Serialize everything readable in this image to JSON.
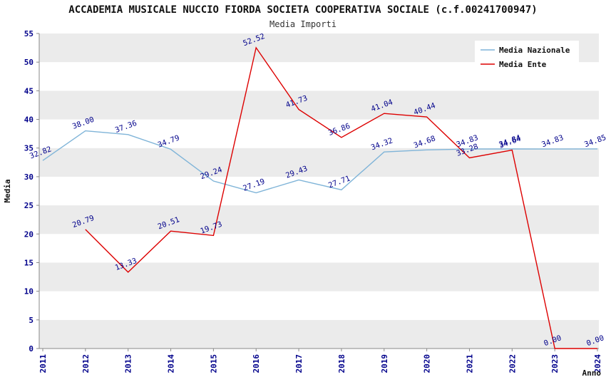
{
  "chart_data": {
    "type": "line",
    "title": "ACCADEMIA MUSICALE NUCCIO FIORDA SOCIETA COOPERATIVA SOCIALE (c.f.00241700947)",
    "subtitle": "Media Importi",
    "xlabel": "Anno",
    "ylabel": "Media",
    "ylim": [
      0,
      55
    ],
    "ytick_step": 5,
    "x": [
      2011,
      2012,
      2013,
      2014,
      2015,
      2016,
      2017,
      2018,
      2019,
      2020,
      2021,
      2022,
      2023,
      2024
    ],
    "series": [
      {
        "name": "Media Nazionale",
        "color": "#7FB4D8",
        "values": [
          32.82,
          38.0,
          37.36,
          34.79,
          29.24,
          27.19,
          29.43,
          27.71,
          34.32,
          34.68,
          34.83,
          34.84,
          34.83,
          34.85
        ]
      },
      {
        "name": "Media Ente",
        "color": "#DD0000",
        "values": [
          null,
          20.79,
          13.33,
          20.51,
          19.73,
          52.52,
          41.73,
          36.86,
          41.04,
          40.44,
          33.28,
          34.64,
          0.0,
          0.0
        ]
      }
    ],
    "legend": {
      "position": "top-right",
      "entries": [
        "Media Nazionale",
        "Media Ente"
      ]
    },
    "grid": "horizontal-bands",
    "band_colors": [
      "#EBEBEB",
      "#FFFFFF"
    ],
    "label_color": "#00008B",
    "tick_label_color": "#00008B",
    "axis_color": "#888888"
  }
}
